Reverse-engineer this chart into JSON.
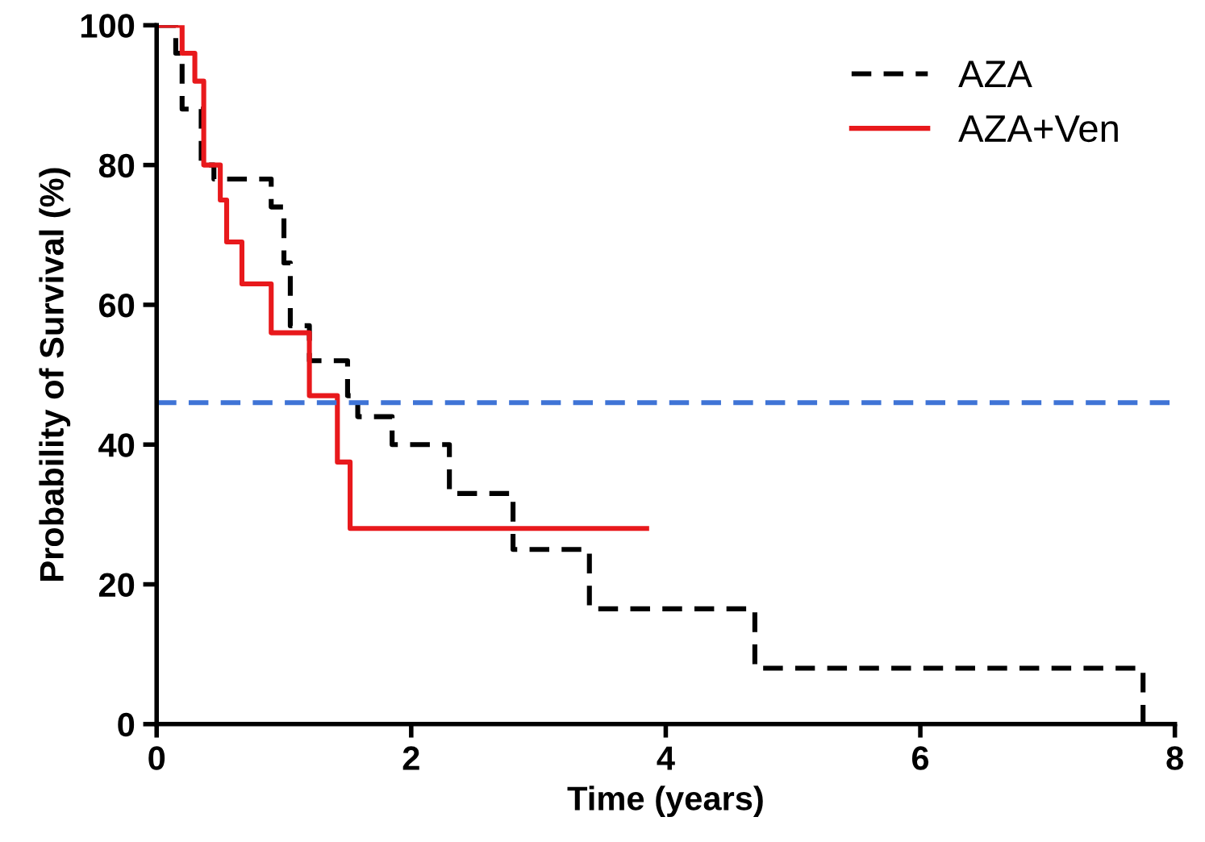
{
  "chart_data": {
    "type": "step",
    "xlabel": "Time (years)",
    "ylabel": "Probability of Survival (%)",
    "xlim": [
      0,
      8
    ],
    "xticks": [
      0,
      2,
      4,
      6,
      8
    ],
    "ylim": [
      0,
      100
    ],
    "yticks": [
      0,
      20,
      40,
      60,
      80,
      100
    ],
    "grid": false,
    "legend": "top right",
    "series": [
      {
        "name": "AZA",
        "color": "#000000",
        "line_style": "dashed",
        "x": [
          0,
          0.15,
          0.2,
          0.35,
          0.45,
          0.9,
          1.0,
          1.05,
          1.2,
          1.5,
          1.58,
          1.85,
          2.3,
          2.8,
          3.4,
          4.7,
          7.75
        ],
        "values": [
          100,
          96,
          88,
          80,
          78,
          74,
          66,
          57,
          52,
          47,
          44,
          40,
          33,
          25,
          16.5,
          8,
          0
        ]
      },
      {
        "name": "AZA+Ven",
        "color": "#e8191c",
        "line_style": "solid",
        "x": [
          0,
          0.2,
          0.3,
          0.37,
          0.5,
          0.55,
          0.67,
          0.9,
          1.2,
          1.42,
          1.52,
          3.85
        ],
        "values": [
          100,
          96,
          92,
          80,
          75,
          69,
          63,
          56,
          47,
          37.5,
          28,
          28
        ]
      }
    ],
    "ref_lines": [
      {
        "axis": "y",
        "value": 46,
        "color": "#3f74d6",
        "line_style": "dashed"
      }
    ]
  }
}
